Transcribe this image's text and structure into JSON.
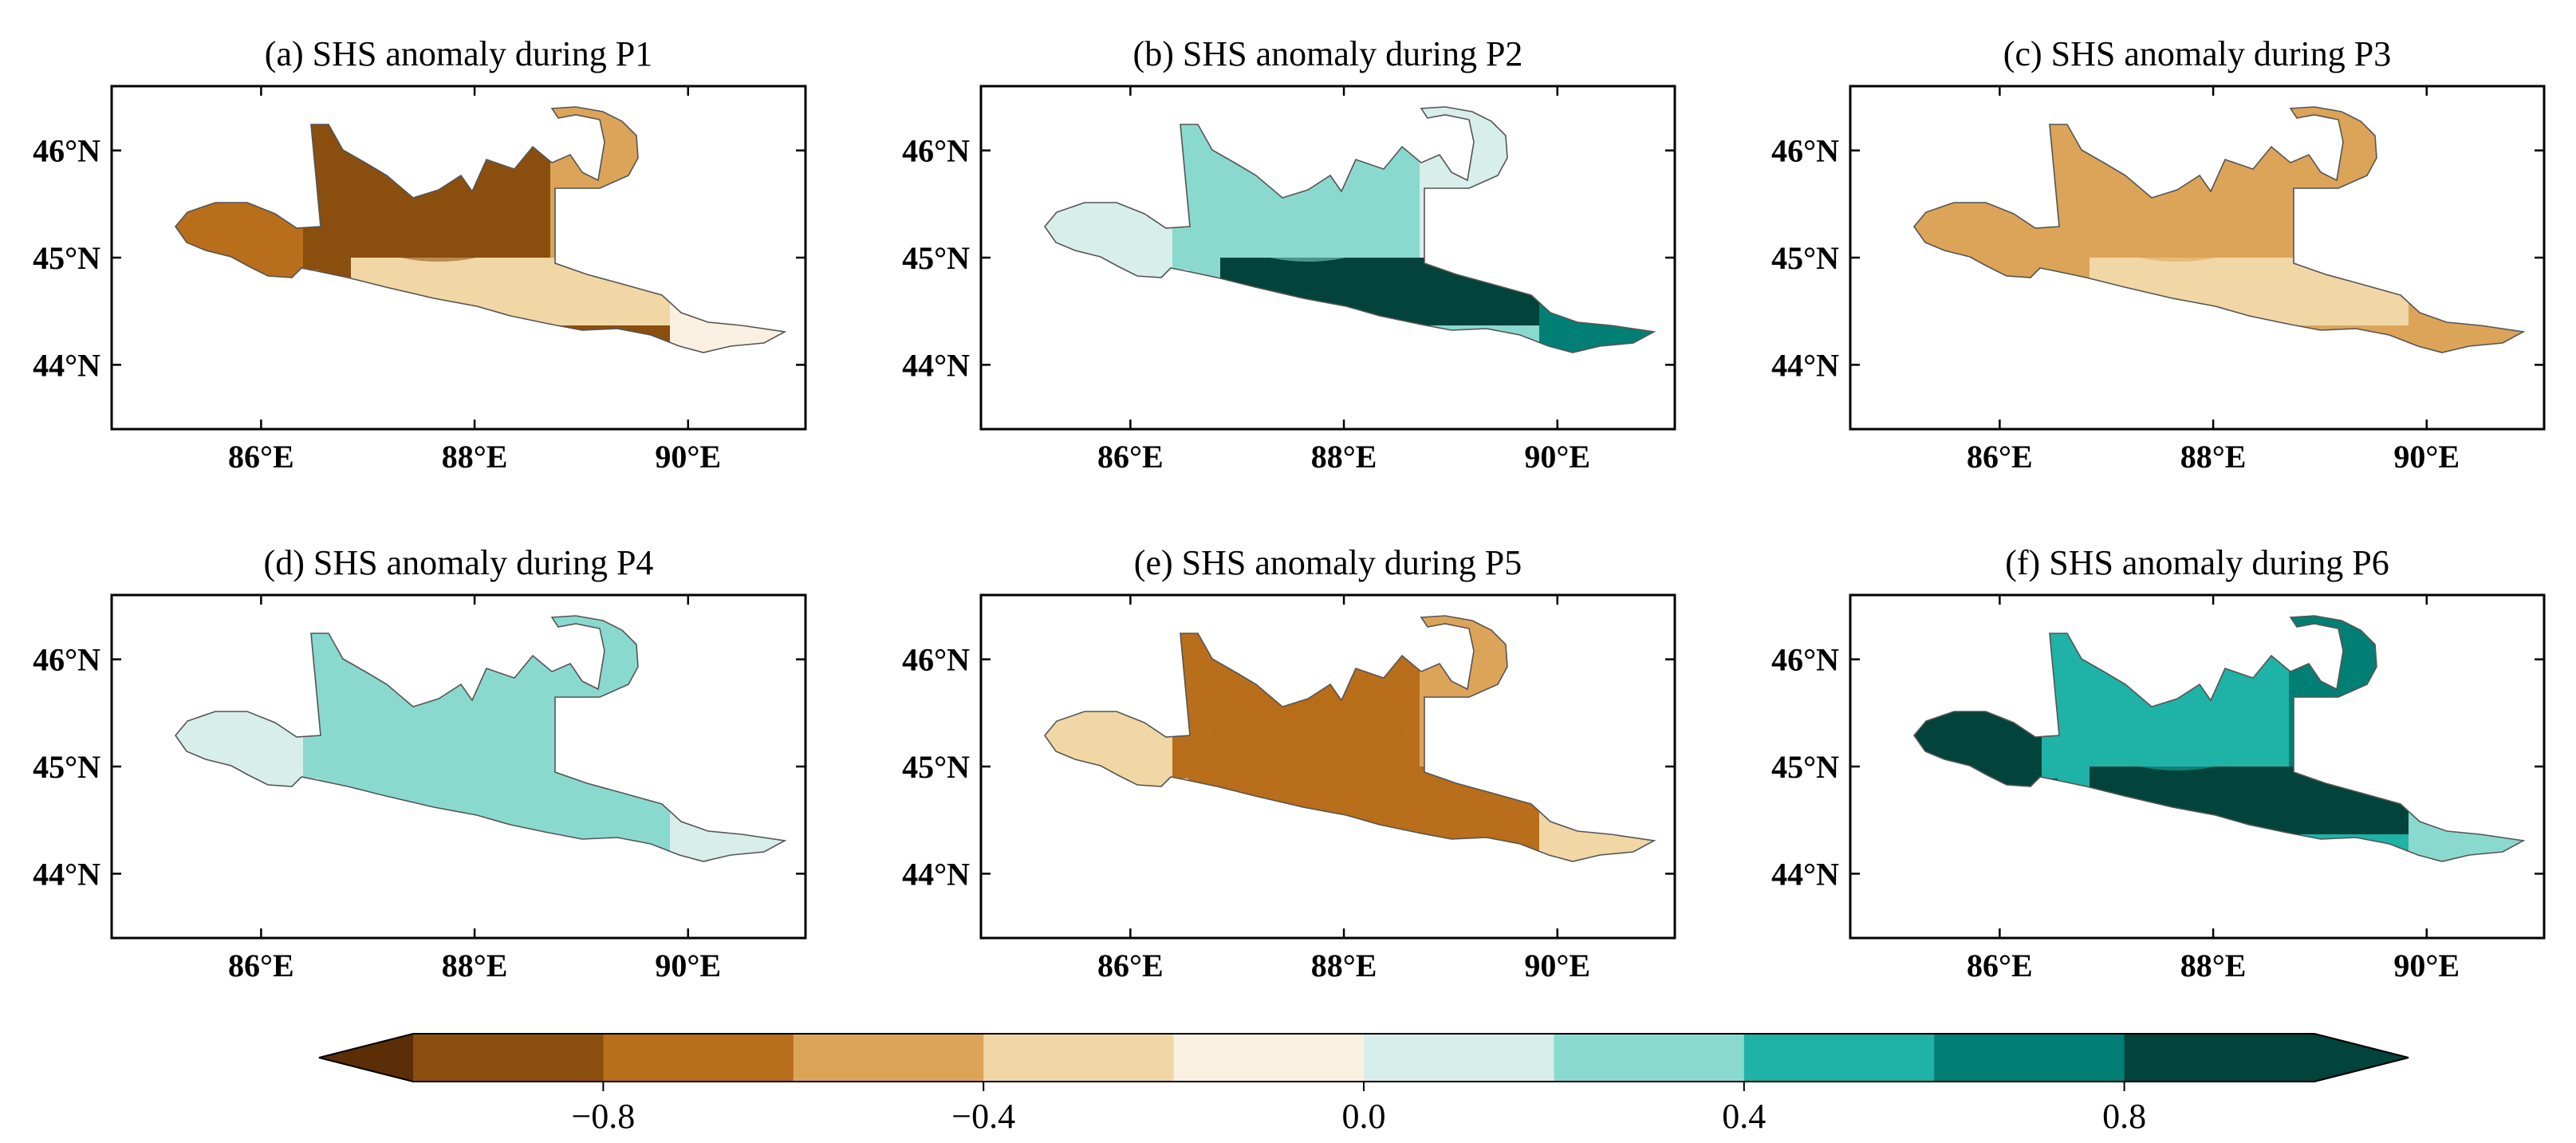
{
  "chart_data": {
    "type": "filled-contour-map-panels",
    "figure_caption": "",
    "shared_axes": {
      "lon_ticks": [
        86,
        88,
        90
      ],
      "lon_tick_labels": [
        "86°E",
        "88°E",
        "90°E"
      ],
      "lat_ticks": [
        46,
        45,
        44
      ],
      "lat_tick_labels": [
        "46°N",
        "45°N",
        "44°N"
      ],
      "lon_range": [
        84.6,
        91.1
      ],
      "lat_range": [
        43.4,
        46.6
      ]
    },
    "panels": [
      {
        "id": "a",
        "title": "(a) SHS anomaly during P1",
        "dominant_level": -0.9,
        "regions": [
          {
            "name": "west arm",
            "level": -0.7
          },
          {
            "name": "central block",
            "level": -0.9
          },
          {
            "name": "east lobe",
            "level": -0.5
          },
          {
            "name": "southern strip",
            "level": -0.3
          },
          {
            "name": "east tail",
            "level": -0.1
          }
        ]
      },
      {
        "id": "b",
        "title": "(b) SHS anomaly during P2",
        "dominant_level": 0.3,
        "regions": [
          {
            "name": "west arm",
            "level": 0.1
          },
          {
            "name": "central block",
            "level": 0.3
          },
          {
            "name": "east lobe",
            "level": 0.1
          },
          {
            "name": "southern strip",
            "level": 0.9
          },
          {
            "name": "east tail",
            "level": 0.7
          }
        ]
      },
      {
        "id": "c",
        "title": "(c) SHS anomaly during P3",
        "dominant_level": -0.5,
        "regions": [
          {
            "name": "west arm",
            "level": -0.5
          },
          {
            "name": "central block",
            "level": -0.5
          },
          {
            "name": "east lobe",
            "level": -0.5
          },
          {
            "name": "southern strip",
            "level": -0.3
          },
          {
            "name": "east tail",
            "level": -0.5
          }
        ]
      },
      {
        "id": "d",
        "title": "(d) SHS anomaly during P4",
        "dominant_level": 0.3,
        "regions": [
          {
            "name": "west arm",
            "level": 0.1
          },
          {
            "name": "central block",
            "level": 0.3
          },
          {
            "name": "east lobe",
            "level": 0.3
          },
          {
            "name": "southern strip",
            "level": 0.3
          },
          {
            "name": "east tail",
            "level": 0.1
          }
        ]
      },
      {
        "id": "e",
        "title": "(e) SHS anomaly during P5",
        "dominant_level": -0.7,
        "regions": [
          {
            "name": "west arm",
            "level": -0.3
          },
          {
            "name": "central block",
            "level": -0.7
          },
          {
            "name": "east lobe",
            "level": -0.5
          },
          {
            "name": "southern strip",
            "level": -0.7
          },
          {
            "name": "east tail",
            "level": -0.3
          }
        ]
      },
      {
        "id": "f",
        "title": "(f) SHS anomaly during P6",
        "dominant_level": 0.5,
        "regions": [
          {
            "name": "west arm",
            "level": 0.9
          },
          {
            "name": "central block",
            "level": 0.5
          },
          {
            "name": "east lobe",
            "level": 0.7
          },
          {
            "name": "southern strip",
            "level": 0.9
          },
          {
            "name": "east tail",
            "level": 0.3
          }
        ]
      }
    ],
    "colorbar": {
      "levels": [
        -1.0,
        -0.8,
        -0.6,
        -0.4,
        -0.2,
        0.0,
        0.2,
        0.4,
        0.6,
        0.8,
        1.0
      ],
      "colors": [
        "#5b2e07",
        "#8a4e0e",
        "#b86e1a",
        "#dca459",
        "#f1d7a5",
        "#faf0e1",
        "#d8eeeb",
        "#8ad9cf",
        "#1fb2a7",
        "#027f74",
        "#02433b"
      ],
      "tick_values": [
        -0.8,
        -0.4,
        0.0,
        0.4,
        0.8
      ],
      "tick_labels": [
        "−0.8",
        "−0.4",
        "0.0",
        "0.4",
        "0.8"
      ],
      "extend": "both"
    }
  }
}
